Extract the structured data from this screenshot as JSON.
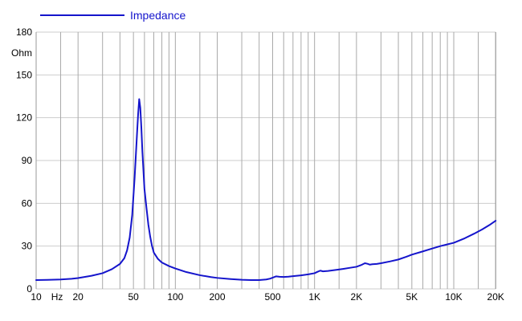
{
  "legend": {
    "label": "Impedance"
  },
  "colors": {
    "curve": "#1515cc",
    "legend_text": "#1515cc",
    "v_grid": "#a9a9a9",
    "h_grid": "#cdcdcd",
    "border": "#999999",
    "text": "#000000",
    "background": "#ffffff"
  },
  "chart_data": {
    "type": "line",
    "title": "",
    "legend_position": "top-left",
    "grid": true,
    "x_axis": {
      "scale": "log",
      "min": 10,
      "max": 20000,
      "unit": "Hz",
      "ticks": [
        {
          "value": 10,
          "label": "10"
        },
        {
          "value": 20,
          "label": "20"
        },
        {
          "value": 50,
          "label": "50"
        },
        {
          "value": 100,
          "label": "100"
        },
        {
          "value": 200,
          "label": "200"
        },
        {
          "value": 500,
          "label": "500"
        },
        {
          "value": 1000,
          "label": "1K"
        },
        {
          "value": 2000,
          "label": "2K"
        },
        {
          "value": 5000,
          "label": "5K"
        },
        {
          "value": 10000,
          "label": "10K"
        },
        {
          "value": 20000,
          "label": "20K"
        }
      ],
      "grid_multiples": [
        1,
        1.5,
        2,
        3,
        4,
        5,
        6,
        7,
        8,
        9
      ]
    },
    "y_axis": {
      "scale": "linear",
      "min": 0,
      "max": 180,
      "step": 30,
      "unit": "Ohm",
      "ticks": [
        {
          "value": 180,
          "label": "180"
        },
        {
          "value": 150,
          "label": "150"
        },
        {
          "value": 120,
          "label": "120"
        },
        {
          "value": 90,
          "label": "90"
        },
        {
          "value": 60,
          "label": "60"
        },
        {
          "value": 30,
          "label": "30"
        },
        {
          "value": 0,
          "label": "0"
        }
      ]
    },
    "series": [
      {
        "name": "Impedance",
        "color": "#1515cc",
        "points": [
          [
            10,
            6.2
          ],
          [
            12,
            6.3
          ],
          [
            15,
            6.6
          ],
          [
            18,
            7.1
          ],
          [
            20,
            7.6
          ],
          [
            25,
            9.2
          ],
          [
            30,
            11.0
          ],
          [
            35,
            13.8
          ],
          [
            40,
            17.5
          ],
          [
            43,
            21.5
          ],
          [
            45,
            27
          ],
          [
            47,
            36
          ],
          [
            49,
            52
          ],
          [
            51,
            78
          ],
          [
            53,
            108
          ],
          [
            54,
            122
          ],
          [
            55,
            133
          ],
          [
            56,
            127
          ],
          [
            57,
            113
          ],
          [
            58,
            96
          ],
          [
            60,
            70
          ],
          [
            62,
            57
          ],
          [
            64,
            45
          ],
          [
            66,
            36.5
          ],
          [
            68,
            30
          ],
          [
            70,
            25.5
          ],
          [
            75,
            21
          ],
          [
            80,
            18.5
          ],
          [
            90,
            16
          ],
          [
            100,
            14.3
          ],
          [
            120,
            11.8
          ],
          [
            150,
            9.6
          ],
          [
            180,
            8.3
          ],
          [
            200,
            7.7
          ],
          [
            250,
            6.9
          ],
          [
            300,
            6.4
          ],
          [
            350,
            6.2
          ],
          [
            400,
            6.2
          ],
          [
            450,
            6.6
          ],
          [
            480,
            7.2
          ],
          [
            510,
            8.2
          ],
          [
            530,
            8.8
          ],
          [
            560,
            8.5
          ],
          [
            600,
            8.4
          ],
          [
            650,
            8.6
          ],
          [
            700,
            8.9
          ],
          [
            800,
            9.5
          ],
          [
            900,
            10.2
          ],
          [
            1000,
            11.0
          ],
          [
            1050,
            12.0
          ],
          [
            1100,
            12.8
          ],
          [
            1150,
            12.3
          ],
          [
            1250,
            12.6
          ],
          [
            1400,
            13.2
          ],
          [
            1600,
            14.0
          ],
          [
            1800,
            14.8
          ],
          [
            2000,
            15.5
          ],
          [
            2150,
            16.6
          ],
          [
            2300,
            18.0
          ],
          [
            2400,
            17.6
          ],
          [
            2500,
            17.0
          ],
          [
            2600,
            17.3
          ],
          [
            2800,
            17.5
          ],
          [
            3000,
            18.0
          ],
          [
            3500,
            19.3
          ],
          [
            4000,
            20.6
          ],
          [
            4500,
            22.3
          ],
          [
            5000,
            24.0
          ],
          [
            6000,
            26.3
          ],
          [
            7000,
            28.3
          ],
          [
            8000,
            30.0
          ],
          [
            9000,
            31.2
          ],
          [
            10000,
            32.3
          ],
          [
            12000,
            35.5
          ],
          [
            14000,
            38.7
          ],
          [
            16000,
            41.7
          ],
          [
            18000,
            44.7
          ],
          [
            20000,
            47.8
          ]
        ]
      }
    ]
  }
}
